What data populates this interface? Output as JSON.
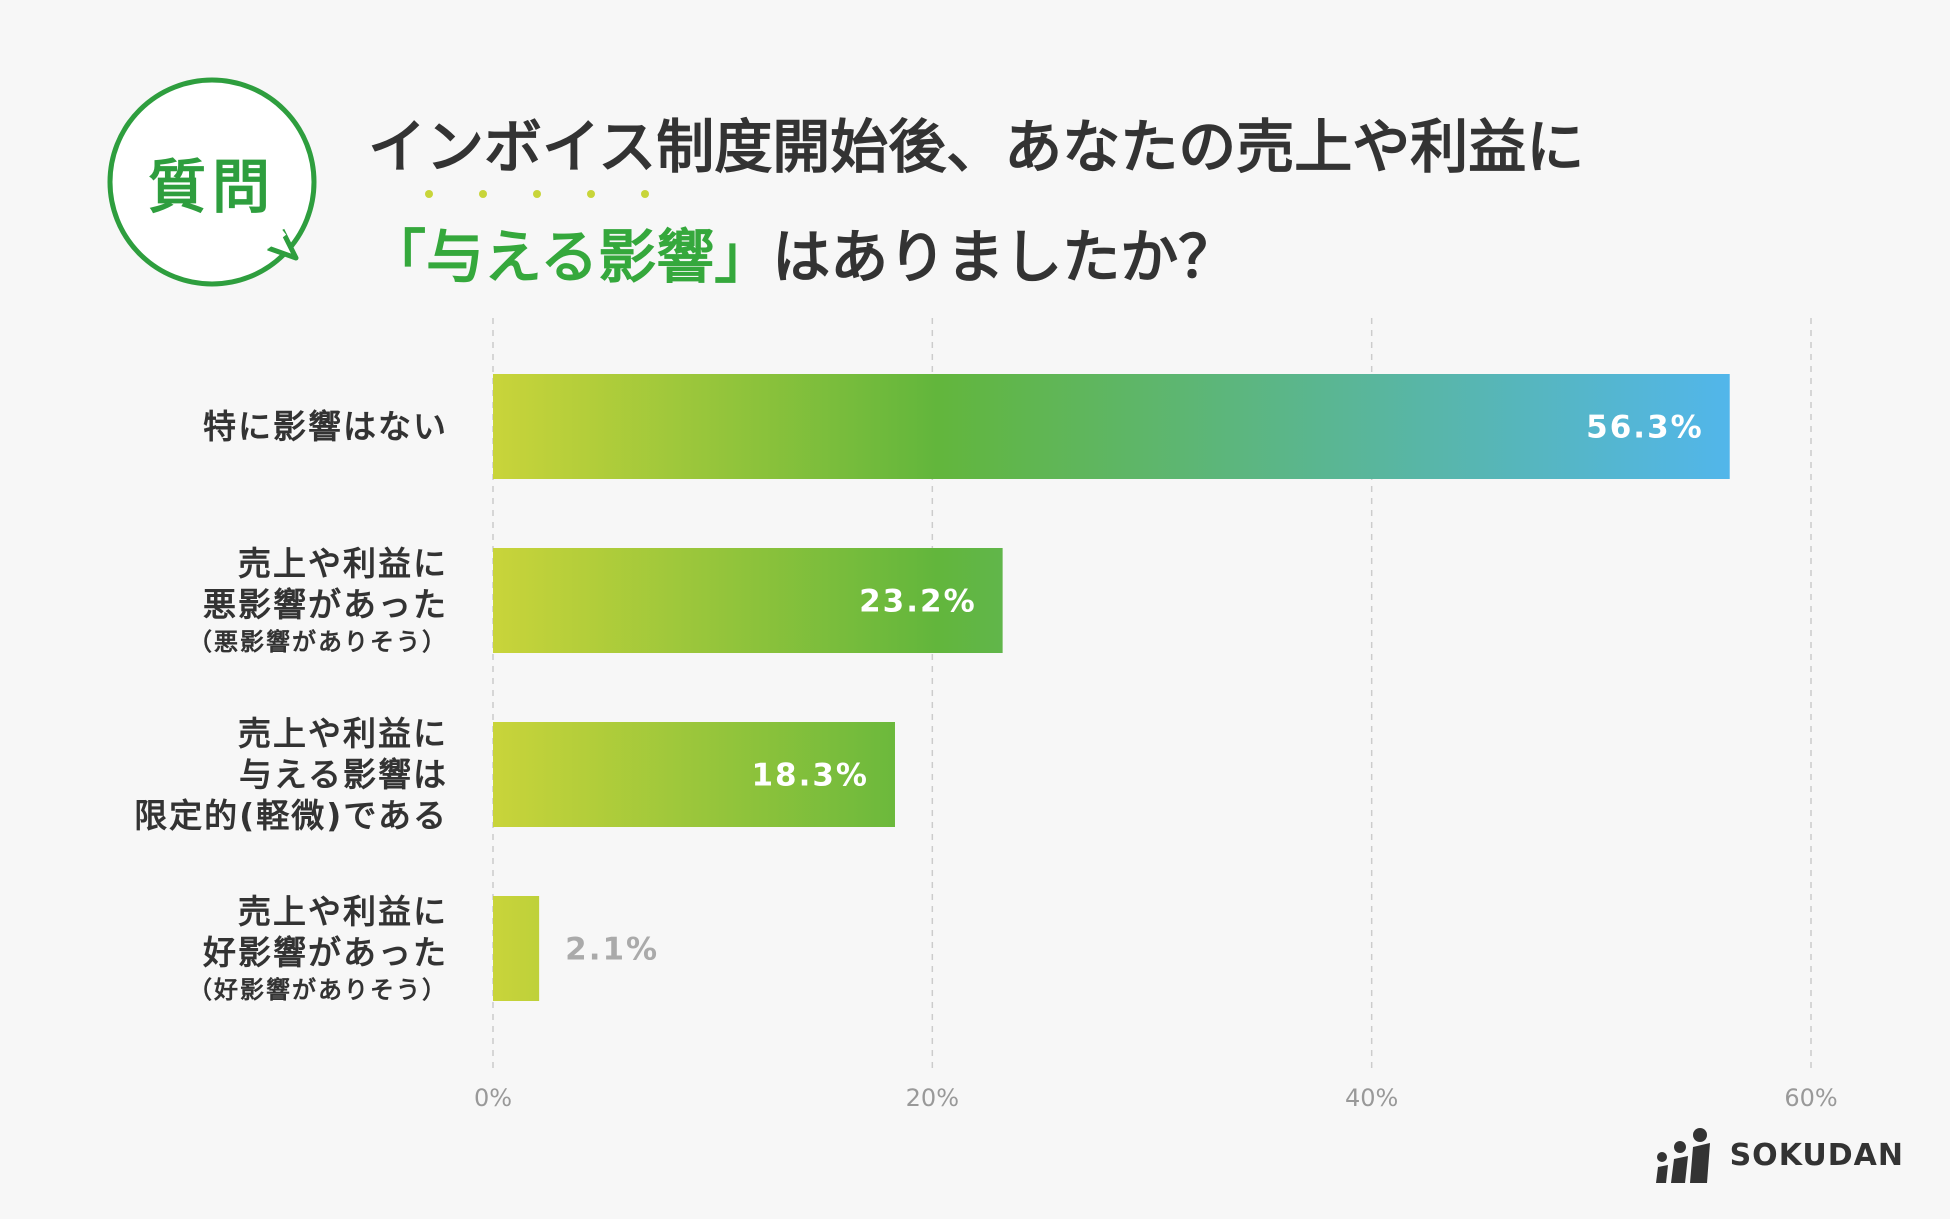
{
  "badge": {
    "text": "質問"
  },
  "title": {
    "line1": "インボイス制度開始後、あなたの売上や利益に",
    "highlight": "「与える影響」",
    "rest": "はありましたか？"
  },
  "logo": {
    "text": "SOKUDAN"
  },
  "colors": {
    "accent_green": "#35a83c",
    "bar_start": "#c9d43a",
    "bar_mid": "#62b63c",
    "bar_end": "#52b6ea",
    "grid": "#cccccc"
  },
  "chart_data": {
    "type": "bar",
    "orientation": "horizontal",
    "categories": [
      {
        "main": [
          "特に影響はない"
        ],
        "sub": ""
      },
      {
        "main": [
          "売上や利益に",
          "悪影響があった"
        ],
        "sub": "（悪影響がありそう）"
      },
      {
        "main": [
          "売上や利益に",
          "与える影響は",
          "限定的(軽微)である"
        ],
        "sub": ""
      },
      {
        "main": [
          "売上や利益に",
          "好影響があった"
        ],
        "sub": "（好影響がありそう）"
      }
    ],
    "values": [
      56.3,
      23.2,
      18.3,
      2.1
    ],
    "value_labels": [
      "56.3%",
      "23.2%",
      "18.3%",
      "2.1%"
    ],
    "xlim": [
      0,
      60
    ],
    "xticks": [
      0,
      20,
      40,
      60
    ],
    "xtick_labels": [
      "0%",
      "20%",
      "40%",
      "60%"
    ],
    "grid": true
  }
}
